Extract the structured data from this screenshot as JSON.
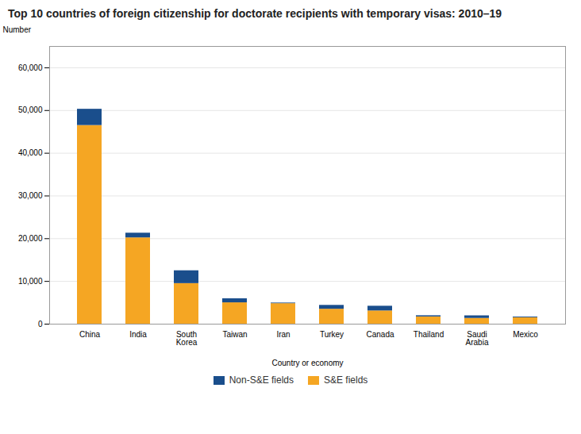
{
  "chart_data": {
    "type": "bar",
    "title": "Top 10 countries of foreign citizenship for doctorate recipients with temporary visas: 2010–19",
    "categories": [
      "China",
      "India",
      "South\nKorea",
      "Taiwan",
      "Iran",
      "Turkey",
      "Canada",
      "Thailand",
      "Saudi\nArabia",
      "Mexico"
    ],
    "series": [
      {
        "name": "S&E fields",
        "color": "#F5A623",
        "values": [
          46500,
          20200,
          9500,
          5000,
          4800,
          3500,
          3100,
          1700,
          1350,
          1500
        ]
      },
      {
        "name": "Non-S&E fields",
        "color": "#1A4E8C",
        "values": [
          3800,
          1100,
          3000,
          950,
          150,
          900,
          1100,
          280,
          600,
          180
        ]
      }
    ],
    "xlabel": "Country or economy",
    "ylabel": "Number",
    "ylim": [
      0,
      65000
    ],
    "yticks": [
      0,
      {
        "value": 10000,
        "label": "10,000"
      },
      {
        "value": 20000,
        "label": "20,000"
      },
      {
        "value": 30000,
        "label": "30,000"
      },
      {
        "value": 40000,
        "label": "40,000"
      },
      {
        "value": 50000,
        "label": "50,000"
      },
      {
        "value": 60000,
        "label": "60,000"
      }
    ],
    "stacked": true,
    "grid": true,
    "legend": "bottom"
  }
}
